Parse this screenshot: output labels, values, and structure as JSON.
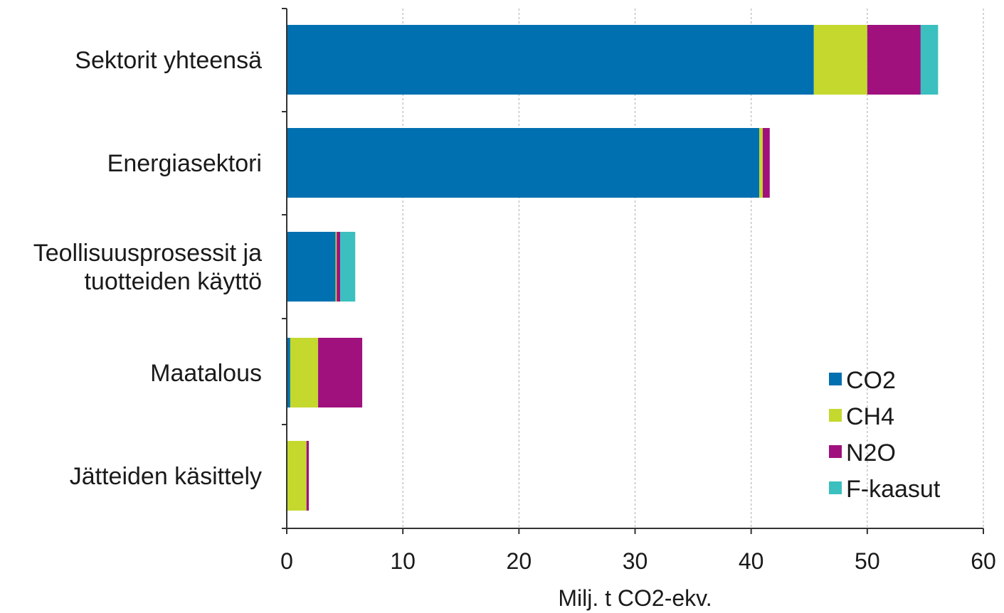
{
  "chart_data": {
    "type": "bar",
    "orientation": "horizontal",
    "stacked": true,
    "categories": [
      [
        "Sektorit yhteensä"
      ],
      [
        "Energiasektori"
      ],
      [
        "Teollisuusprosessit ja",
        "tuotteiden käyttö"
      ],
      [
        "Maatalous"
      ],
      [
        "Jätteiden käsittely"
      ]
    ],
    "series": [
      {
        "name": "CO2",
        "color": "#0070b0",
        "values": [
          45.4,
          40.7,
          4.2,
          0.3,
          0.0
        ]
      },
      {
        "name": "CH4",
        "color": "#c4d82e",
        "values": [
          4.6,
          0.3,
          0.1,
          2.4,
          1.7
        ]
      },
      {
        "name": "N2O",
        "color": "#a0117e",
        "values": [
          4.6,
          0.6,
          0.3,
          3.8,
          0.2
        ]
      },
      {
        "name": "F-kaasut",
        "color": "#3bbfbf",
        "values": [
          1.5,
          0.0,
          1.3,
          0.0,
          0.0
        ]
      }
    ],
    "xlabel": "Milj. t CO2-ekv.",
    "xlim": [
      0,
      60
    ],
    "xticks": [
      0,
      10,
      20,
      30,
      40,
      50,
      60
    ],
    "grid": true,
    "legend_position": "bottom-right"
  }
}
